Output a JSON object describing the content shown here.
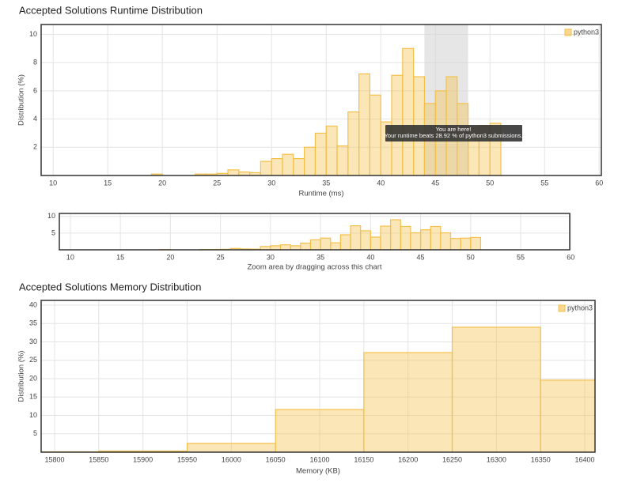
{
  "chart_data": [
    {
      "type": "histogram",
      "title": "Accepted Solutions Runtime Distribution",
      "xlabel": "Runtime (ms)",
      "ylabel": "Distribution (%)",
      "legend": "python3",
      "legend_loc": "upper right",
      "color": "#f5c04a",
      "grid": true,
      "bins": [
        19,
        20,
        21,
        22,
        23,
        24,
        25,
        26,
        27,
        28,
        29,
        30,
        31,
        32,
        33,
        34,
        35,
        36,
        37,
        38,
        39,
        40,
        41,
        42,
        43,
        44,
        45,
        46,
        47,
        48,
        49,
        50,
        51
      ],
      "values": [
        0.1,
        0,
        0,
        0,
        0.1,
        0.1,
        0.15,
        0.4,
        0.25,
        0.2,
        1.0,
        1.2,
        1.5,
        1.2,
        2.0,
        3.0,
        3.5,
        2.1,
        4.5,
        7.2,
        5.7,
        3.8,
        7.1,
        9.0,
        7.0,
        5.1,
        6.0,
        7.0,
        5.1,
        3.4,
        3.5,
        3.7
      ],
      "xlim": [
        8.9,
        60.2
      ],
      "xticks": [
        10,
        15,
        20,
        25,
        30,
        35,
        40,
        45,
        50,
        55,
        60
      ],
      "ylim": [
        0,
        10.7
      ],
      "yticks": [
        2,
        4,
        6,
        8,
        10
      ],
      "highlight": [
        44,
        48
      ],
      "annotations": [
        "You are here!",
        "Your runtime beats 28.92 % of python3 submissions."
      ]
    },
    {
      "type": "navigator",
      "xlabel": "Zoom area by dragging across this chart",
      "color": "#f5c04a",
      "grid": true,
      "xlim": [
        8.9,
        59.9
      ],
      "xticks": [
        10,
        15,
        20,
        25,
        30,
        35,
        40,
        45,
        50,
        55,
        60
      ],
      "ylim": [
        0,
        10.9
      ],
      "yticks": [
        5,
        10
      ]
    },
    {
      "type": "histogram",
      "title": "Accepted Solutions Memory Distribution",
      "xlabel": "Memory (KB)",
      "ylabel": "Distribution (%)",
      "legend": "python3",
      "legend_loc": "upper right",
      "color": "#f5c04a",
      "grid": true,
      "bins": [
        15750,
        15850,
        15950,
        16050,
        16150,
        16250,
        16350,
        16450
      ],
      "values": [
        0.1,
        0.3,
        2.4,
        11.6,
        27.1,
        34,
        19.6
      ],
      "xlim": [
        15784.8,
        16411.6
      ],
      "xticks": [
        15800,
        15850,
        15900,
        15950,
        16000,
        16050,
        16100,
        16150,
        16200,
        16250,
        16300,
        16350,
        16400
      ],
      "ylim": [
        0,
        41.3
      ],
      "yticks": [
        5,
        10,
        15,
        20,
        25,
        30,
        35,
        40
      ]
    }
  ]
}
